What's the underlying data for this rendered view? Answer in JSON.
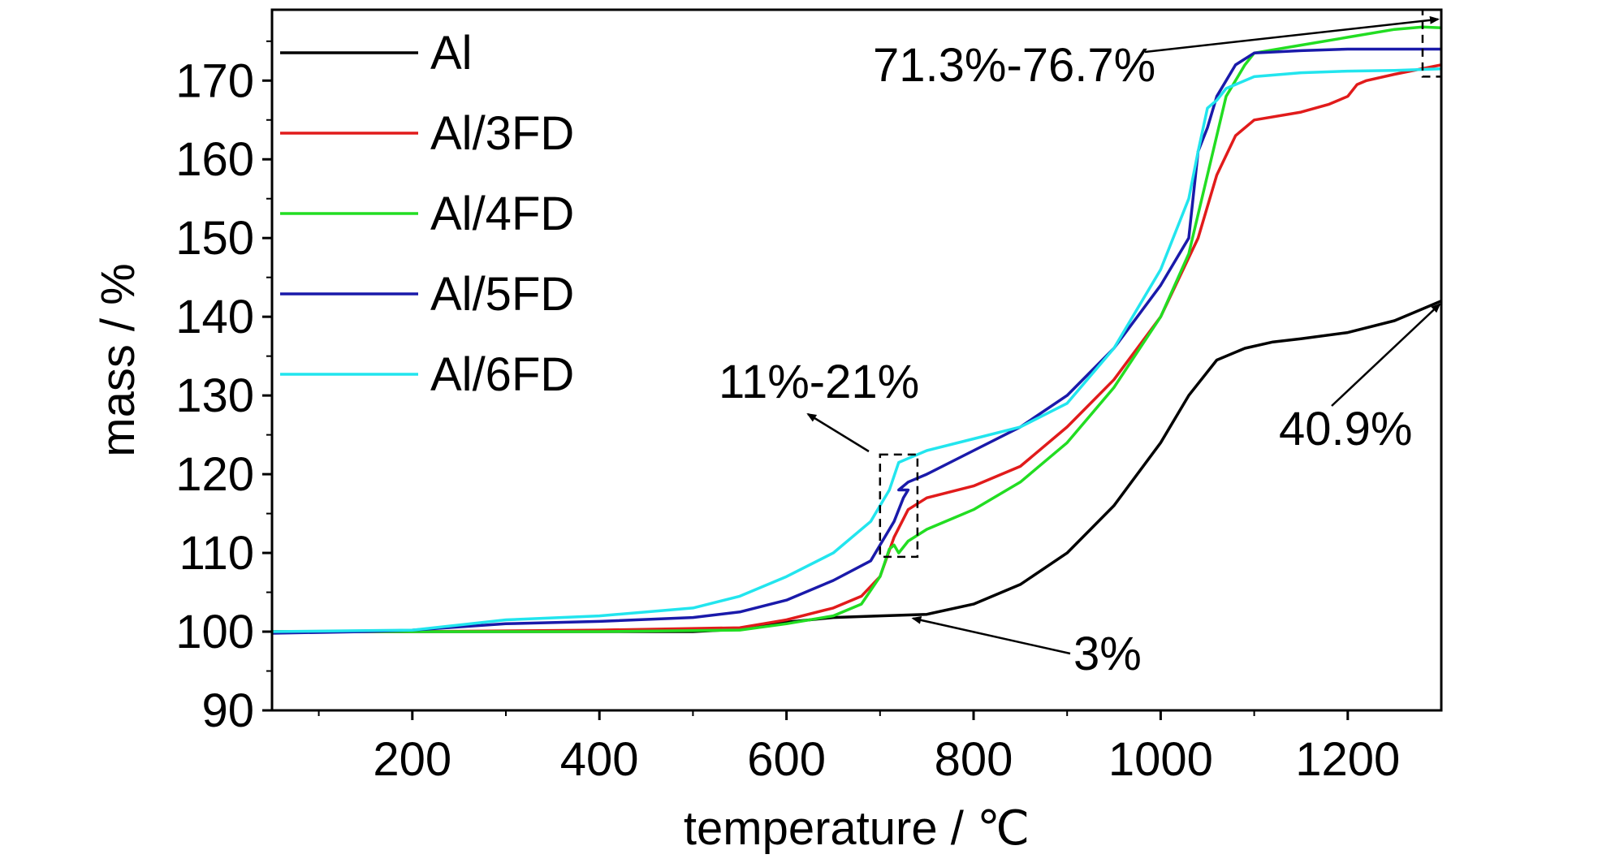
{
  "chart_data": {
    "type": "line",
    "title": "",
    "xlabel": "temperature / ℃",
    "ylabel": "mass / %",
    "xlim": [
      50,
      1300
    ],
    "ylim": [
      90,
      179
    ],
    "xticks": [
      200,
      400,
      600,
      800,
      1000,
      1200
    ],
    "yticks": [
      90,
      100,
      110,
      120,
      130,
      140,
      150,
      160,
      170
    ],
    "grid": false,
    "legend_position": "top-left",
    "series": [
      {
        "name": "Al",
        "color": "#000000",
        "x": [
          50,
          200,
          400,
          500,
          550,
          600,
          650,
          700,
          750,
          800,
          850,
          900,
          950,
          1000,
          1030,
          1060,
          1090,
          1120,
          1150,
          1200,
          1250,
          1300
        ],
        "y": [
          100,
          100,
          100,
          100,
          100.3,
          101.2,
          101.8,
          102,
          102.2,
          103.5,
          106,
          110,
          116,
          124,
          130,
          134.5,
          136,
          136.8,
          137.2,
          138,
          139.5,
          142
        ]
      },
      {
        "name": "Al/3FD",
        "color": "#e11b1b",
        "x": [
          50,
          200,
          400,
          550,
          600,
          650,
          680,
          700,
          715,
          730,
          750,
          800,
          850,
          900,
          950,
          1000,
          1040,
          1060,
          1080,
          1100,
          1150,
          1180,
          1200,
          1210,
          1220,
          1250,
          1300
        ],
        "y": [
          100,
          100,
          100.2,
          100.5,
          101.5,
          103,
          104.5,
          107,
          112,
          115.5,
          117,
          118.5,
          121,
          126,
          132,
          140,
          150,
          158,
          163,
          165,
          166,
          167,
          168,
          169.5,
          170,
          170.8,
          172
        ]
      },
      {
        "name": "Al/4FD",
        "color": "#22dd22",
        "x": [
          50,
          200,
          400,
          550,
          600,
          650,
          680,
          700,
          710,
          715,
          720,
          730,
          750,
          800,
          850,
          900,
          950,
          1000,
          1030,
          1050,
          1070,
          1090,
          1100,
          1150,
          1200,
          1250,
          1280,
          1300
        ],
        "y": [
          100,
          100,
          100,
          100.2,
          101,
          102,
          103.5,
          107,
          110.5,
          111,
          110,
          111.5,
          113,
          115.5,
          119,
          124,
          131,
          140,
          148,
          158,
          168,
          172,
          173.5,
          174.5,
          175.5,
          176.5,
          176.8,
          176.7
        ]
      },
      {
        "name": "Al/5FD",
        "color": "#1a1aaa",
        "x": [
          50,
          150,
          200,
          300,
          400,
          500,
          550,
          600,
          650,
          690,
          700,
          715,
          725,
          730,
          720,
          730,
          750,
          800,
          850,
          900,
          950,
          1000,
          1030,
          1040,
          1045,
          1050,
          1060,
          1080,
          1100,
          1150,
          1200,
          1250,
          1300
        ],
        "y": [
          99.8,
          100,
          100.2,
          101,
          101.3,
          101.8,
          102.5,
          104,
          106.5,
          109,
          111,
          114,
          117,
          118,
          118,
          119,
          120,
          123,
          126,
          130,
          136,
          144,
          150,
          161,
          162.5,
          164,
          168,
          172,
          173.5,
          173.8,
          174,
          174,
          174
        ]
      },
      {
        "name": "Al/6FD",
        "color": "#22e5ee",
        "x": [
          50,
          200,
          300,
          400,
          500,
          550,
          600,
          650,
          690,
          700,
          710,
          720,
          730,
          750,
          800,
          850,
          900,
          950,
          1000,
          1030,
          1040,
          1050,
          1060,
          1070,
          1100,
          1150,
          1200,
          1250,
          1300
        ],
        "y": [
          100,
          100.2,
          101.5,
          102,
          103,
          104.5,
          107,
          110,
          114,
          116,
          118,
          121.5,
          122,
          123,
          124.5,
          126,
          129,
          136,
          146,
          155,
          161,
          166.5,
          167.5,
          169,
          170.5,
          171,
          171.2,
          171.3,
          171.5
        ]
      }
    ],
    "annotations": [
      {
        "text": "71.3%-76.7%",
        "arrow_to": [
          1300,
          178
        ],
        "box_x": [
          1280,
          1300
        ],
        "box_y": [
          170.5,
          179
        ]
      },
      {
        "text": "11%-21%",
        "arrow_to": [
          700,
          122.5
        ],
        "box_x": [
          700,
          740
        ],
        "box_y": [
          109.5,
          122.5
        ]
      },
      {
        "text": "3%",
        "arrow_to": [
          730,
          102
        ]
      },
      {
        "text": "40.9%",
        "arrow_to": [
          1300,
          142
        ]
      }
    ]
  }
}
